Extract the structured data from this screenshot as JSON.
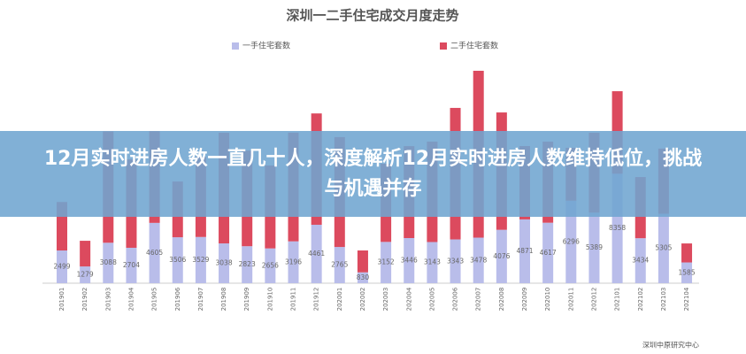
{
  "chart_data": {
    "type": "stacked-bar",
    "title": "深圳一二手住宅成交月度走势",
    "categories": [
      "201901",
      "201902",
      "201903",
      "201904",
      "201905",
      "201906",
      "201907",
      "201908",
      "201909",
      "201910",
      "201911",
      "201912",
      "202001",
      "202002",
      "202003",
      "202004",
      "202005",
      "202006",
      "202007",
      "202008",
      "202009",
      "202010",
      "202011",
      "202012",
      "202101",
      "202102",
      "202103",
      "202104"
    ],
    "series": [
      {
        "name": "一手住宅套数",
        "color": "#b9bdea",
        "values": [
          2499,
          1279,
          3088,
          2704,
          4605,
          3506,
          3529,
          3038,
          2823,
          2656,
          3196,
          4461,
          2765,
          830,
          3152,
          3446,
          3143,
          3343,
          3478,
          4076,
          4871,
          4617,
          6296,
          5389,
          8358,
          3434,
          5305,
          1585
        ]
      },
      {
        "name": "二手住宅套数",
        "color": "#dc4a5e",
        "values": [
          3700,
          1960,
          8500,
          6750,
          7000,
          4260,
          6130,
          8450,
          7300,
          6330,
          8300,
          8500,
          8390,
          1670,
          5970,
          7020,
          7670,
          10040,
          12740,
          8960,
          5600,
          6190,
          4040,
          6100,
          6300,
          4670,
          4970,
          1450
        ]
      }
    ],
    "source": "深圳中原研究中心"
  },
  "headline": "12月实时进房人数一直几十人，深度解析12月实时进房人数维持低位，挑战与机遇并存"
}
